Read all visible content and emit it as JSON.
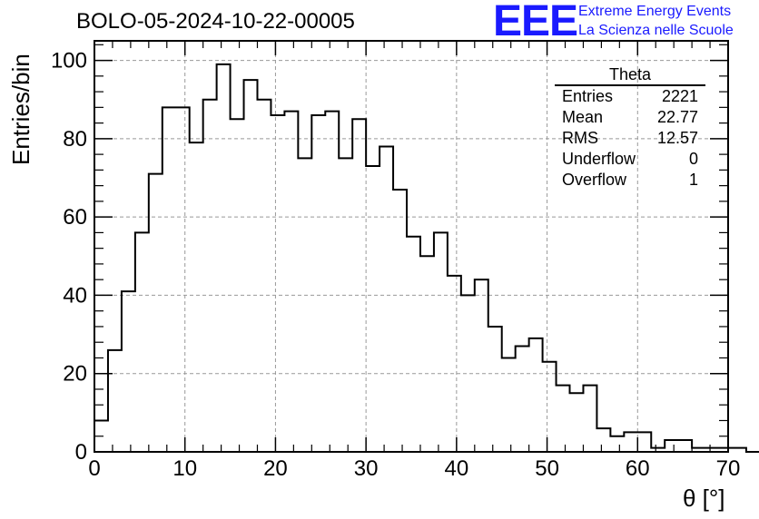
{
  "title": "BOLO-05-2024-10-22-00005",
  "logo": {
    "mark": "EEE",
    "line1": "Extreme Energy Events",
    "line2": "La Scienza nelle Scuole",
    "color": "#1a1aff"
  },
  "stats": {
    "name": "Theta",
    "rows": [
      {
        "label": "Entries",
        "value": "2221"
      },
      {
        "label": "Mean",
        "value": "22.77"
      },
      {
        "label": "RMS",
        "value": "12.57"
      },
      {
        "label": "Underflow",
        "value": "0"
      },
      {
        "label": "Overflow",
        "value": "1"
      }
    ]
  },
  "chart_data": {
    "type": "bar",
    "style": "step-histogram",
    "xlabel": "θ [°]",
    "ylabel": "Entries/bin",
    "xlim": [
      0,
      70
    ],
    "ylim": [
      0,
      105
    ],
    "xticks": [
      0,
      10,
      20,
      30,
      40,
      50,
      60,
      70
    ],
    "yticks": [
      0,
      20,
      40,
      60,
      80,
      100
    ],
    "grid": true,
    "bin_width": 1.5,
    "bin_start": 0,
    "values": [
      8,
      26,
      41,
      56,
      71,
      88,
      88,
      79,
      90,
      99,
      85,
      95,
      90,
      86,
      87,
      75,
      86,
      87,
      75,
      85,
      73,
      78,
      67,
      55,
      50,
      56,
      45,
      40,
      44,
      32,
      24,
      27,
      29,
      23,
      17,
      15,
      17,
      6,
      4,
      5,
      5,
      1,
      3,
      3,
      1,
      1,
      1,
      1,
      0
    ]
  }
}
